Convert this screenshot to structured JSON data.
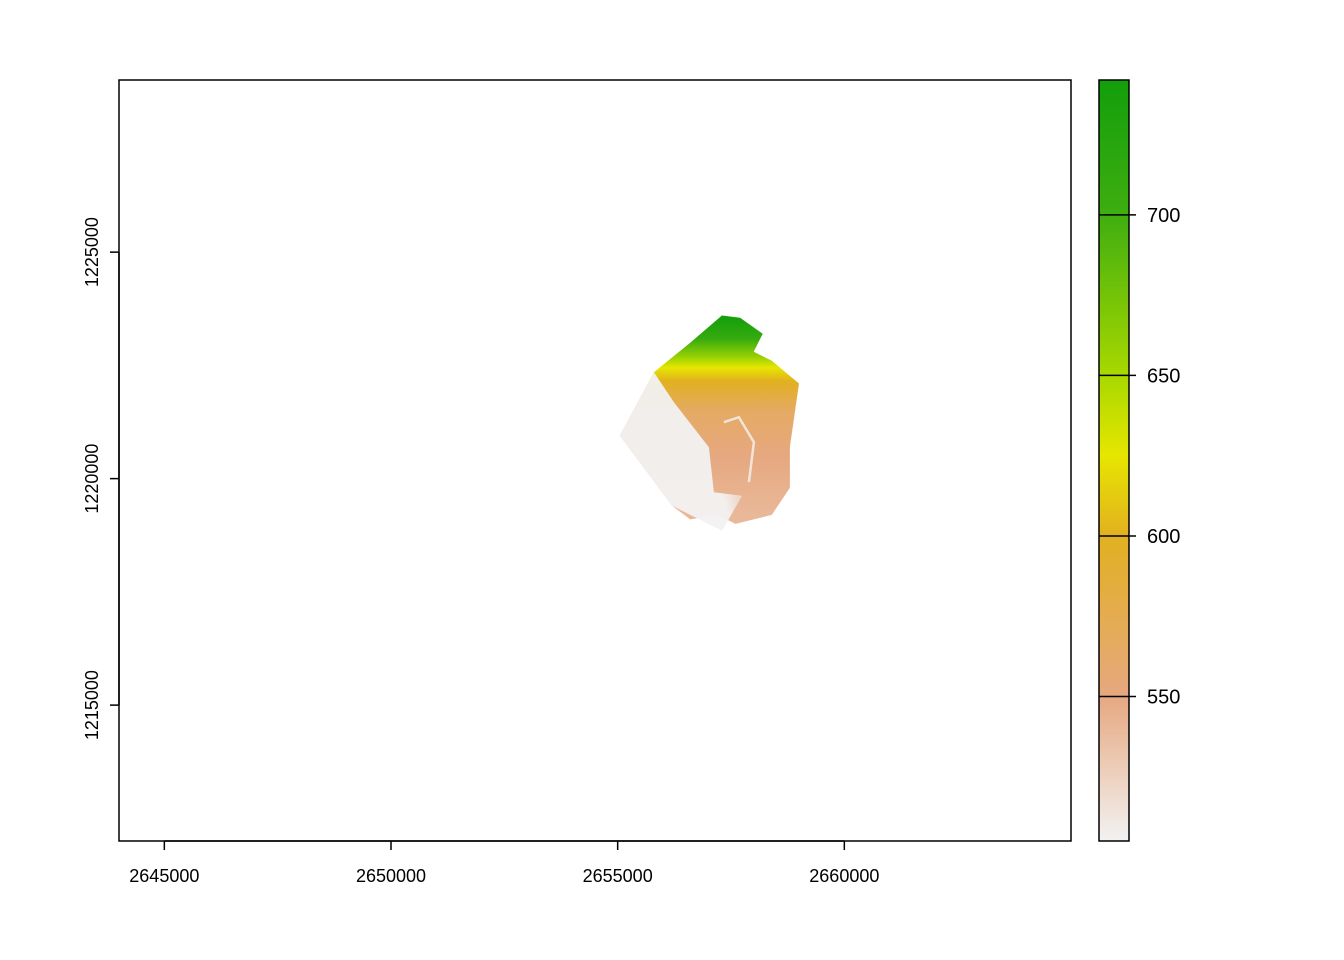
{
  "chart_data": {
    "type": "heatmap",
    "title": "",
    "xlabel": "",
    "ylabel": "",
    "xlim": [
      2644000,
      2665000
    ],
    "ylim": [
      1212000,
      1228800
    ],
    "x_ticks": [
      {
        "value": 2645000,
        "label": "2645000"
      },
      {
        "value": 2650000,
        "label": "2650000"
      },
      {
        "value": 2655000,
        "label": "2655000"
      },
      {
        "value": 2660000,
        "label": "2660000"
      }
    ],
    "y_ticks": [
      {
        "value": 1215000,
        "label": "1215000"
      },
      {
        "value": 1220000,
        "label": "1220000"
      },
      {
        "value": 1225000,
        "label": "1225000"
      }
    ],
    "legend": {
      "placement": "right",
      "range": [
        505,
        742
      ],
      "ticks": [
        {
          "value": 550,
          "label": "550"
        },
        {
          "value": 600,
          "label": "600"
        },
        {
          "value": 650,
          "label": "650"
        },
        {
          "value": 700,
          "label": "700"
        }
      ],
      "color_stops": [
        {
          "value": 505,
          "color": "#f2f2f2"
        },
        {
          "value": 550,
          "color": "#e6a880"
        },
        {
          "value": 600,
          "color": "#e2b020"
        },
        {
          "value": 625,
          "color": "#e6e600"
        },
        {
          "value": 650,
          "color": "#a8d800"
        },
        {
          "value": 700,
          "color": "#3fae10"
        },
        {
          "value": 742,
          "color": "#129e0b"
        }
      ]
    },
    "regions": [
      {
        "name": "elevation-raster",
        "boundary": [
          [
            2655050,
            1220950
          ],
          [
            2655800,
            1222350
          ],
          [
            2656600,
            1223000
          ],
          [
            2657300,
            1223600
          ],
          [
            2657700,
            1223550
          ],
          [
            2658200,
            1223200
          ],
          [
            2658000,
            1222800
          ],
          [
            2658400,
            1222600
          ],
          [
            2659000,
            1222100
          ],
          [
            2658800,
            1220700
          ],
          [
            2658800,
            1219800
          ],
          [
            2658400,
            1219200
          ],
          [
            2657600,
            1219000
          ],
          [
            2657200,
            1219200
          ],
          [
            2656600,
            1219100
          ],
          [
            2656200,
            1219400
          ]
        ],
        "elevation_bands": [
          {
            "y": 1223600,
            "value": 742
          },
          {
            "y": 1223100,
            "value": 710
          },
          {
            "y": 1222700,
            "value": 660
          },
          {
            "y": 1222450,
            "value": 625
          },
          {
            "y": 1222150,
            "value": 600
          },
          {
            "y": 1221500,
            "value": 565
          },
          {
            "y": 1220500,
            "value": 550
          },
          {
            "y": 1219200,
            "value": 540
          }
        ],
        "low_valley_value": 505
      }
    ]
  }
}
